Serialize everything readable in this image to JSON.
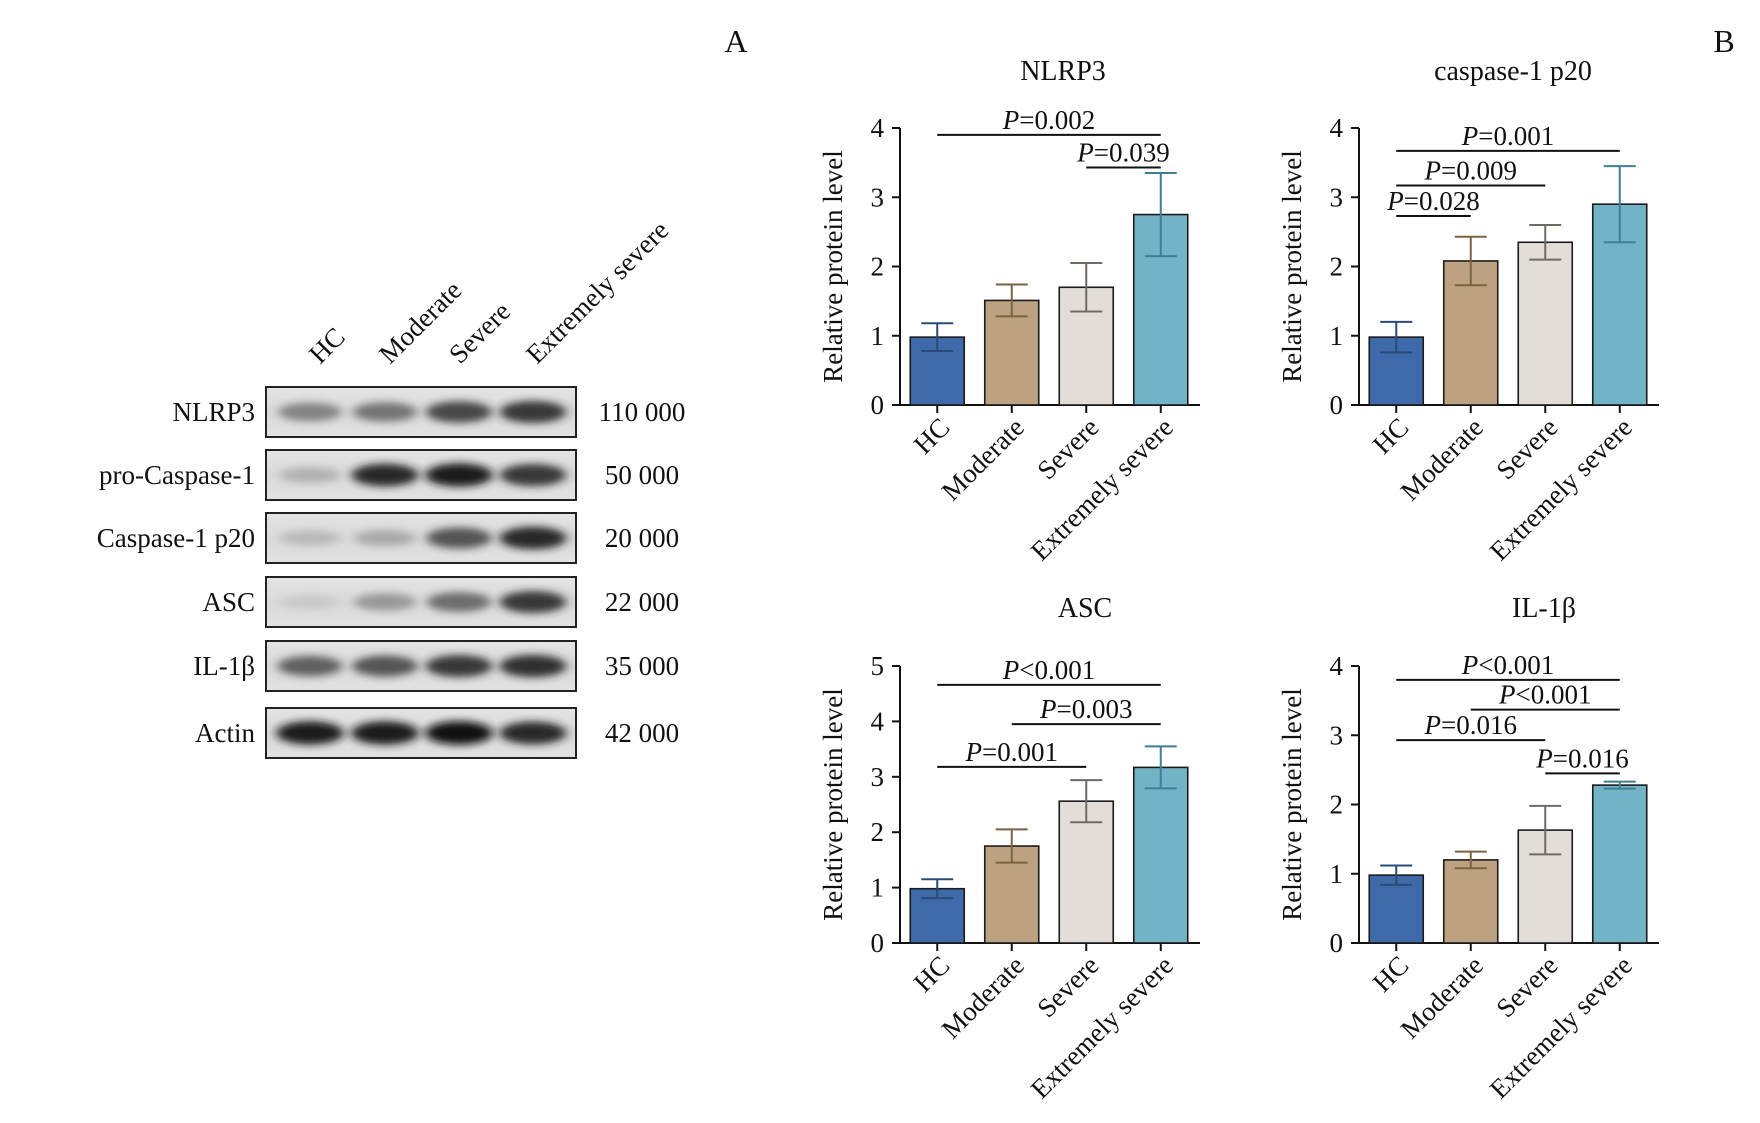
{
  "panels": {
    "a_label": "A",
    "b_label": "B"
  },
  "blot": {
    "lanes": [
      "HC",
      "Moderate",
      "Severe",
      "Extremely severe"
    ],
    "rows": [
      {
        "name": "NLRP3",
        "mw": "110 000",
        "intensity": [
          0.55,
          0.62,
          0.8,
          0.85
        ]
      },
      {
        "name": "pro-Caspase-1",
        "mw": "50 000",
        "intensity": [
          0.3,
          0.9,
          0.95,
          0.85
        ]
      },
      {
        "name": "Caspase-1 p20",
        "mw": "20 000",
        "intensity": [
          0.25,
          0.35,
          0.75,
          0.9
        ]
      },
      {
        "name": "ASC",
        "mw": "22 000",
        "intensity": [
          0.12,
          0.45,
          0.65,
          0.85
        ]
      },
      {
        "name": "IL-1β",
        "mw": "35 000",
        "intensity": [
          0.7,
          0.75,
          0.85,
          0.88
        ]
      },
      {
        "name": "Actin",
        "mw": "42 000",
        "intensity": [
          0.95,
          0.95,
          0.97,
          0.9
        ]
      }
    ]
  },
  "colors": {
    "HC": "#3f6aa9",
    "Moderate": "#bda281",
    "Severe": "#e2ddd7",
    "Extremely severe": "#73b3c6"
  },
  "chart_data": [
    {
      "type": "bar",
      "title": "NLRP3",
      "ylabel": "Relative protein level",
      "ylim": [
        0,
        4
      ],
      "yticks": [
        "0",
        "1",
        "2",
        "3",
        "4"
      ],
      "categories": [
        "HC",
        "Moderate",
        "Severe",
        "Extremely severe"
      ],
      "values": [
        0.98,
        1.51,
        1.7,
        2.75
      ],
      "errors": [
        0.2,
        0.23,
        0.35,
        0.6
      ],
      "annotations": [
        {
          "label": "=0.002",
          "from": 0,
          "to": 3,
          "y": 3.9
        },
        {
          "label": "=0.039",
          "from": 2,
          "to": 3,
          "y": 3.43
        }
      ]
    },
    {
      "type": "bar",
      "title": "caspase-1 p20",
      "ylabel": "Relative protein level",
      "ylim": [
        0,
        4
      ],
      "yticks": [
        "0",
        "1",
        "2",
        "3",
        "4"
      ],
      "categories": [
        "HC",
        "Moderate",
        "Severe",
        "Extremely severe"
      ],
      "values": [
        0.98,
        2.08,
        2.35,
        2.9
      ],
      "errors": [
        0.22,
        0.35,
        0.25,
        0.55
      ],
      "annotations": [
        {
          "label": "=0.001",
          "from": 0,
          "to": 3,
          "y": 3.67
        },
        {
          "label": "=0.009",
          "from": 0,
          "to": 2,
          "y": 3.17
        },
        {
          "label": "=0.028",
          "from": 0,
          "to": 1,
          "y": 2.73
        }
      ]
    },
    {
      "type": "bar",
      "title": "ASC",
      "ylabel": "Relative protein level",
      "ylim": [
        0,
        5
      ],
      "yticks": [
        "0",
        "1",
        "2",
        "3",
        "4",
        "5"
      ],
      "categories": [
        "HC",
        "Moderate",
        "Severe",
        "Extremely severe"
      ],
      "values": [
        0.98,
        1.75,
        2.56,
        3.17
      ],
      "errors": [
        0.17,
        0.3,
        0.38,
        0.38
      ],
      "annotations": [
        {
          "label": "<0.001",
          "from": 0,
          "to": 3,
          "y": 4.66
        },
        {
          "label": "=0.003",
          "from": 1,
          "to": 3,
          "y": 3.95
        },
        {
          "label": "=0.001",
          "from": 0,
          "to": 2,
          "y": 3.18
        }
      ]
    },
    {
      "type": "bar",
      "title": "IL-1β",
      "ylabel": "Relative protein level",
      "ylim": [
        0,
        4
      ],
      "yticks": [
        "0",
        "1",
        "2",
        "3",
        "4"
      ],
      "categories": [
        "HC",
        "Moderate",
        "Severe",
        "Extremely severe"
      ],
      "values": [
        0.98,
        1.2,
        1.63,
        2.28
      ],
      "errors": [
        0.14,
        0.12,
        0.35,
        0.05
      ],
      "annotations": [
        {
          "label": "<0.001",
          "from": 0,
          "to": 3,
          "y": 3.8
        },
        {
          "label": "<0.001",
          "from": 1,
          "to": 3,
          "y": 3.37
        },
        {
          "label": "=0.016",
          "from": 0,
          "to": 2,
          "y": 2.93
        },
        {
          "label": "=0.016",
          "from": 2,
          "to": 3,
          "y": 2.45
        }
      ]
    }
  ]
}
